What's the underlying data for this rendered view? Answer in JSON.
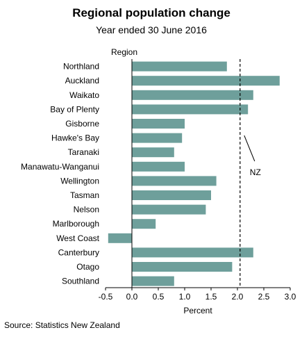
{
  "chart_data": {
    "type": "bar",
    "orientation": "horizontal",
    "title": "Regional population change",
    "subtitle": "Year ended 30 June 2016",
    "ylabel": "Region",
    "xlabel": "Percent",
    "categories": [
      "Northland",
      "Auckland",
      "Waikato",
      "Bay of Plenty",
      "Gisborne",
      "Hawke's Bay",
      "Taranaki",
      "Manawatu-Wanganui",
      "Wellington",
      "Tasman",
      "Nelson",
      "Marlborough",
      "West Coast",
      "Canterbury",
      "Otago",
      "Southland"
    ],
    "values": [
      1.8,
      2.8,
      2.3,
      2.2,
      1.0,
      0.95,
      0.8,
      1.0,
      1.6,
      1.5,
      1.4,
      0.45,
      -0.45,
      2.3,
      1.9,
      0.8
    ],
    "xlim": [
      -0.5,
      3.0
    ],
    "xticks": [
      "-0.5",
      "0.0",
      "0.5",
      "1.0",
      "1.5",
      "2.0",
      "2.5",
      "3.0"
    ],
    "xtick_values": [
      -0.5,
      0,
      0.5,
      1.0,
      1.5,
      2.0,
      2.5,
      3.0
    ],
    "reference_line": {
      "label": "NZ",
      "value": 2.05,
      "style": "dashed"
    },
    "bar_color": "#6e9f9b",
    "grid": false,
    "legend": "none"
  },
  "source": "Source: Statistics New Zealand"
}
